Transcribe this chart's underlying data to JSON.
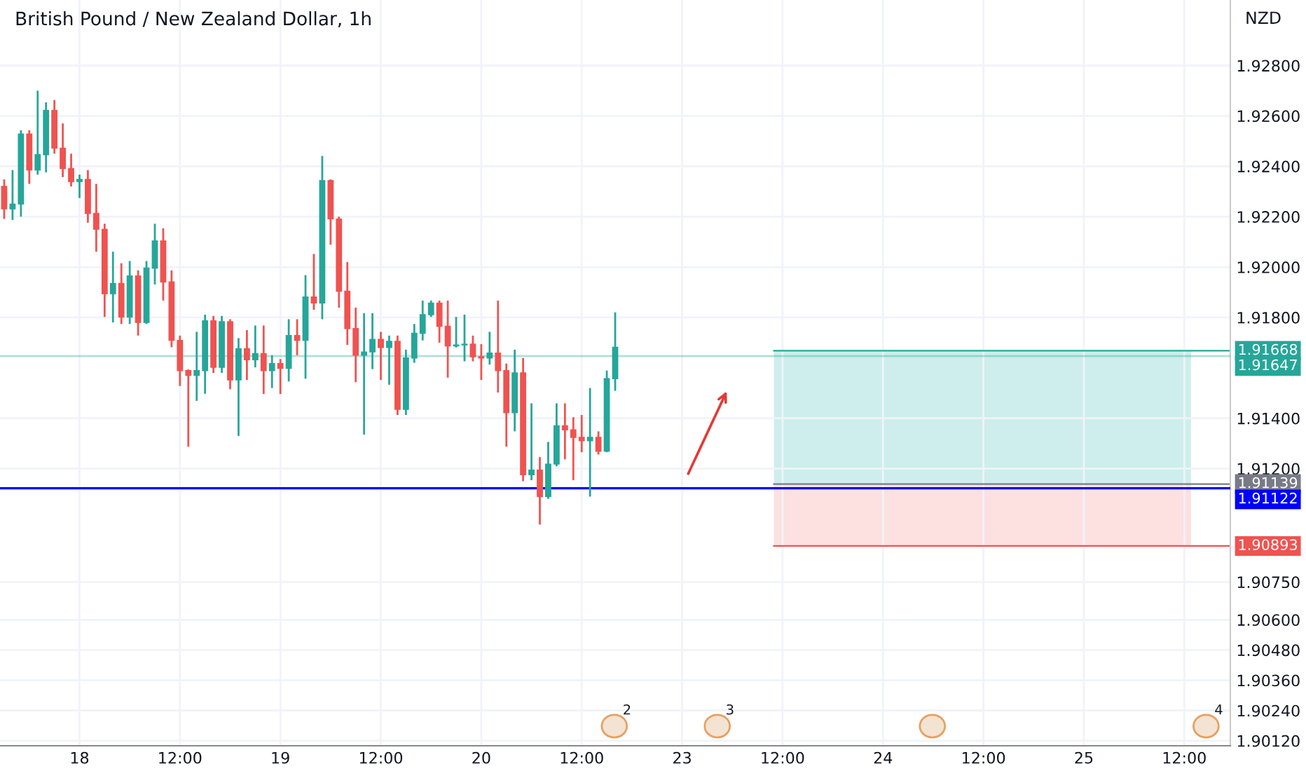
{
  "chart_data": {
    "type": "candlestick",
    "title": "British Pound / New Zealand Dollar, 1h",
    "ylabel": "NZD",
    "categories": [
      null,
      null,
      null,
      null,
      null,
      null,
      null,
      null,
      null,
      "18",
      null,
      null,
      null,
      null,
      null,
      null,
      null,
      null,
      null,
      null,
      null,
      "12:00",
      null,
      null,
      null,
      null,
      null,
      null,
      null,
      null,
      null,
      null,
      null,
      "19",
      null,
      null,
      null,
      null,
      null,
      null,
      null,
      null,
      null,
      null,
      null,
      "12:00",
      null,
      null,
      null,
      null,
      null,
      null,
      null,
      null,
      null,
      null,
      null,
      "20",
      null,
      null,
      null,
      null,
      null,
      null,
      null,
      null,
      null,
      null,
      null,
      "12:00",
      null,
      null,
      null,
      null,
      null,
      null,
      null,
      null,
      null,
      null,
      null,
      "23",
      null,
      null,
      null,
      null,
      null,
      null,
      null,
      null,
      null,
      null,
      null,
      "12:00",
      null,
      null,
      null,
      null,
      null,
      null,
      null,
      null,
      null,
      null,
      null,
      "24",
      null,
      null,
      null,
      null,
      null,
      null,
      null,
      null,
      null,
      null,
      null,
      "12:00",
      null,
      null,
      null,
      null,
      null,
      null,
      null,
      null,
      null,
      null,
      null,
      "25",
      null,
      null,
      null,
      null,
      null,
      null,
      null,
      null,
      null,
      null,
      null,
      "12:00",
      null,
      null,
      null,
      null,
      null
    ],
    "ohlc": [
      [
        1.9232,
        1.92348,
        1.92191,
        1.92231
      ],
      [
        1.92231,
        1.92385,
        1.92187,
        1.9225
      ],
      [
        1.9225,
        1.92543,
        1.922,
        1.92528
      ],
      [
        1.92528,
        1.92543,
        1.9233,
        1.92385
      ],
      [
        1.92385,
        1.927,
        1.92367,
        1.92446
      ],
      [
        1.92446,
        1.92654,
        1.92376,
        1.92622
      ],
      [
        1.92622,
        1.92663,
        1.9245,
        1.92472
      ],
      [
        1.92472,
        1.9257,
        1.92357,
        1.92391
      ],
      [
        1.92391,
        1.9245,
        1.9232,
        1.92339
      ],
      [
        1.92339,
        1.92367,
        1.92274,
        1.92348
      ],
      [
        1.92348,
        1.92385,
        1.92176,
        1.92213
      ],
      [
        1.92213,
        1.9233,
        1.92061,
        1.9215
      ],
      [
        1.9215,
        1.92172,
        1.91802,
        1.91894
      ],
      [
        1.91894,
        1.92061,
        1.9178,
        1.91935
      ],
      [
        1.91935,
        1.92015,
        1.91774,
        1.91802
      ],
      [
        1.91802,
        1.92024,
        1.91774,
        1.91965
      ],
      [
        1.91965,
        1.91987,
        1.91728,
        1.9178
      ],
      [
        1.9178,
        1.92024,
        1.91774,
        1.91996
      ],
      [
        1.91996,
        1.92172,
        1.91931,
        1.92104
      ],
      [
        1.92104,
        1.92154,
        1.91867,
        1.91941
      ],
      [
        1.91941,
        1.91987,
        1.91682,
        1.91709
      ],
      [
        1.91709,
        1.91728,
        1.91528,
        1.91589
      ],
      [
        1.91589,
        1.91594,
        1.91287,
        1.9157
      ],
      [
        1.9157,
        1.91743,
        1.91469,
        1.91589
      ],
      [
        1.91589,
        1.91811,
        1.91497,
        1.91787
      ],
      [
        1.91787,
        1.91806,
        1.9158,
        1.91602
      ],
      [
        1.91602,
        1.91806,
        1.9158,
        1.91783
      ],
      [
        1.91783,
        1.91793,
        1.91515,
        1.91552
      ],
      [
        1.91552,
        1.91718,
        1.9133,
        1.91676
      ],
      [
        1.91676,
        1.9175,
        1.91552,
        1.91632
      ],
      [
        1.91632,
        1.91768,
        1.91602,
        1.91657
      ],
      [
        1.91657,
        1.91768,
        1.91496,
        1.91589
      ],
      [
        1.91589,
        1.9165,
        1.9152,
        1.91617
      ],
      [
        1.91617,
        1.91635,
        1.91496,
        1.91598
      ],
      [
        1.91598,
        1.91793,
        1.91546,
        1.91728
      ],
      [
        1.91728,
        1.91793,
        1.9165,
        1.91709
      ],
      [
        1.91709,
        1.91968,
        1.91557,
        1.91881
      ],
      [
        1.91881,
        1.92052,
        1.9183,
        1.91857
      ],
      [
        1.91857,
        1.92441,
        1.91793,
        1.92343
      ],
      [
        1.92343,
        1.92348,
        1.92089,
        1.92191
      ],
      [
        1.92191,
        1.922,
        1.91839,
        1.91904
      ],
      [
        1.91904,
        1.9202,
        1.91691,
        1.91756
      ],
      [
        1.91756,
        1.91839,
        1.91543,
        1.9165
      ],
      [
        1.9165,
        1.91817,
        1.91335,
        1.91663
      ],
      [
        1.91663,
        1.91817,
        1.91595,
        1.91713
      ],
      [
        1.91713,
        1.91743,
        1.91552,
        1.91681
      ],
      [
        1.91681,
        1.91728,
        1.91533,
        1.91705
      ],
      [
        1.91705,
        1.91728,
        1.91413,
        1.91435
      ],
      [
        1.91435,
        1.91672,
        1.91413,
        1.91639
      ],
      [
        1.91639,
        1.91774,
        1.9162,
        1.91737
      ],
      [
        1.91737,
        1.91867,
        1.91709,
        1.91811
      ],
      [
        1.91811,
        1.91867,
        1.91802,
        1.91857
      ],
      [
        1.91857,
        1.91867,
        1.917,
        1.91765
      ],
      [
        1.91765,
        1.91867,
        1.91561,
        1.91687
      ],
      [
        1.91687,
        1.91802,
        1.91681,
        1.91691
      ],
      [
        1.91691,
        1.91811,
        1.91626,
        1.91694
      ],
      [
        1.91694,
        1.91728,
        1.91626,
        1.91644
      ],
      [
        1.91644,
        1.91694,
        1.91552,
        1.91639
      ],
      [
        1.91639,
        1.91743,
        1.91613,
        1.91659
      ],
      [
        1.91659,
        1.91867,
        1.91502,
        1.91589
      ],
      [
        1.91589,
        1.91617,
        1.91287,
        1.91422
      ],
      [
        1.91422,
        1.91672,
        1.91348,
        1.9158
      ],
      [
        1.9158,
        1.91639,
        1.9115,
        1.91176
      ],
      [
        1.91176,
        1.91459,
        1.91154,
        1.91194
      ],
      [
        1.91194,
        1.91246,
        1.90978,
        1.91089
      ],
      [
        1.91089,
        1.91306,
        1.9108,
        1.91218
      ],
      [
        1.91218,
        1.91459,
        1.91209,
        1.9137
      ],
      [
        1.9137,
        1.91459,
        1.91237,
        1.91354
      ],
      [
        1.91354,
        1.91404,
        1.91154,
        1.91324
      ],
      [
        1.91324,
        1.91413,
        1.91265,
        1.91311
      ],
      [
        1.91311,
        1.9152,
        1.91089,
        1.91324
      ],
      [
        1.91324,
        1.91348,
        1.91256,
        1.91269
      ],
      [
        1.91269,
        1.91589,
        1.91265,
        1.91557
      ],
      [
        1.91557,
        1.9182,
        1.91509,
        1.91682
      ],
      null,
      null,
      null,
      null,
      null,
      null,
      null,
      null,
      null,
      null,
      null,
      null,
      null,
      null,
      null,
      null,
      null,
      null,
      null,
      null,
      null,
      null,
      null,
      null,
      null,
      null,
      null,
      null,
      null,
      null,
      null,
      null,
      null,
      null,
      null,
      null,
      null,
      null,
      null,
      null,
      null,
      null,
      null,
      null,
      null,
      null,
      null,
      null,
      null,
      null,
      null,
      null,
      null,
      null,
      null,
      null,
      null,
      null,
      null,
      null,
      null,
      null,
      null,
      null,
      null,
      null,
      null,
      null,
      null,
      null,
      null,
      null,
      null
    ],
    "colors": [
      "#ef5350",
      "#26a69a",
      "#26a69a",
      "#ef5350",
      "#26a69a",
      "#26a69a",
      "#ef5350",
      "#ef5350",
      "#ef5350",
      "#26a69a",
      "#ef5350",
      "#ef5350",
      "#ef5350",
      "#26a69a",
      "#ef5350",
      "#26a69a",
      "#ef5350",
      "#26a69a",
      "#26a69a",
      "#ef5350",
      "#ef5350",
      "#ef5350",
      "#ef5350",
      "#26a69a",
      "#26a69a",
      "#ef5350",
      "#26a69a",
      "#ef5350",
      "#26a69a",
      "#ef5350",
      "#26a69a",
      "#ef5350",
      "#26a69a",
      "#ef5350",
      "#26a69a",
      "#ef5350",
      "#26a69a",
      "#ef5350",
      "#26a69a",
      "#ef5350",
      "#ef5350",
      "#ef5350",
      "#ef5350",
      "#26a69a",
      "#26a69a",
      "#ef5350",
      "#26a69a",
      "#ef5350",
      "#26a69a",
      "#26a69a",
      "#26a69a",
      "#26a69a",
      "#ef5350",
      "#ef5350",
      "#26a69a",
      "#26a69a",
      "#ef5350",
      "#ef5350",
      "#26a69a",
      "#ef5350",
      "#ef5350",
      "#26a69a",
      "#ef5350",
      "#26a69a",
      "#ef5350",
      "#26a69a",
      "#26a69a",
      "#ef5350",
      "#ef5350",
      "#ef5350",
      "#26a69a",
      "#ef5350",
      "#26a69a",
      "#26a69a",
      null,
      null,
      null,
      null,
      null,
      null,
      null,
      null,
      null,
      null,
      null,
      null,
      null,
      null,
      null,
      null,
      null,
      null,
      null,
      null,
      null,
      null,
      null,
      null,
      null,
      null,
      null,
      null,
      null,
      null,
      null,
      null,
      null,
      null,
      null,
      null,
      null,
      null,
      null,
      null,
      null,
      null,
      null,
      null,
      null,
      null,
      null,
      null,
      null,
      null,
      null,
      null,
      null,
      null,
      null,
      null,
      null,
      null,
      null,
      null,
      null,
      null,
      null,
      null,
      null,
      null,
      null,
      null,
      null,
      null,
      null,
      null,
      null
    ],
    "ylim": [
      1.901,
      1.9306
    ],
    "yticks": [
      {
        "value": 1.928,
        "label": "1.92800"
      },
      {
        "value": 1.926,
        "label": "1.92600"
      },
      {
        "value": 1.924,
        "label": "1.92400"
      },
      {
        "value": 1.922,
        "label": "1.92200"
      },
      {
        "value": 1.92,
        "label": "1.92000"
      },
      {
        "value": 1.918,
        "label": "1.91800"
      },
      {
        "value": 1.914,
        "label": "1.91400"
      },
      {
        "value": 1.912,
        "label": "1.91200"
      },
      {
        "value": 1.9075,
        "label": "1.90750"
      },
      {
        "value": 1.906,
        "label": "1.90600"
      },
      {
        "value": 1.9048,
        "label": "1.90480"
      },
      {
        "value": 1.9036,
        "label": "1.90360"
      },
      {
        "value": 1.9024,
        "label": "1.90240"
      },
      {
        "value": 1.9012,
        "label": "1.90120"
      }
    ],
    "grid": true,
    "bands": [
      {
        "axis": "y",
        "from": 1.91139,
        "to": 1.91668,
        "color": "#cdeeec"
      },
      {
        "axis": "y",
        "from": 1.90893,
        "to": 1.91139,
        "color": "#fde0e0"
      }
    ],
    "ref_lines": [
      {
        "axis": "y",
        "value": 1.91668,
        "label": "1.91668",
        "color": "#26a69a"
      },
      {
        "axis": "y",
        "value": 1.91647,
        "label": "1.91647",
        "color": "#26a69a"
      },
      {
        "axis": "y",
        "value": 1.91139,
        "label": "1.91139",
        "color": "#787b86"
      },
      {
        "axis": "y",
        "value": 1.91122,
        "label": "1.91122",
        "color": "#0000ff"
      },
      {
        "axis": "y",
        "value": 1.90893,
        "label": "1.90893",
        "color": "#ef5350"
      }
    ],
    "annotations": [
      "2",
      "3",
      "4"
    ]
  }
}
